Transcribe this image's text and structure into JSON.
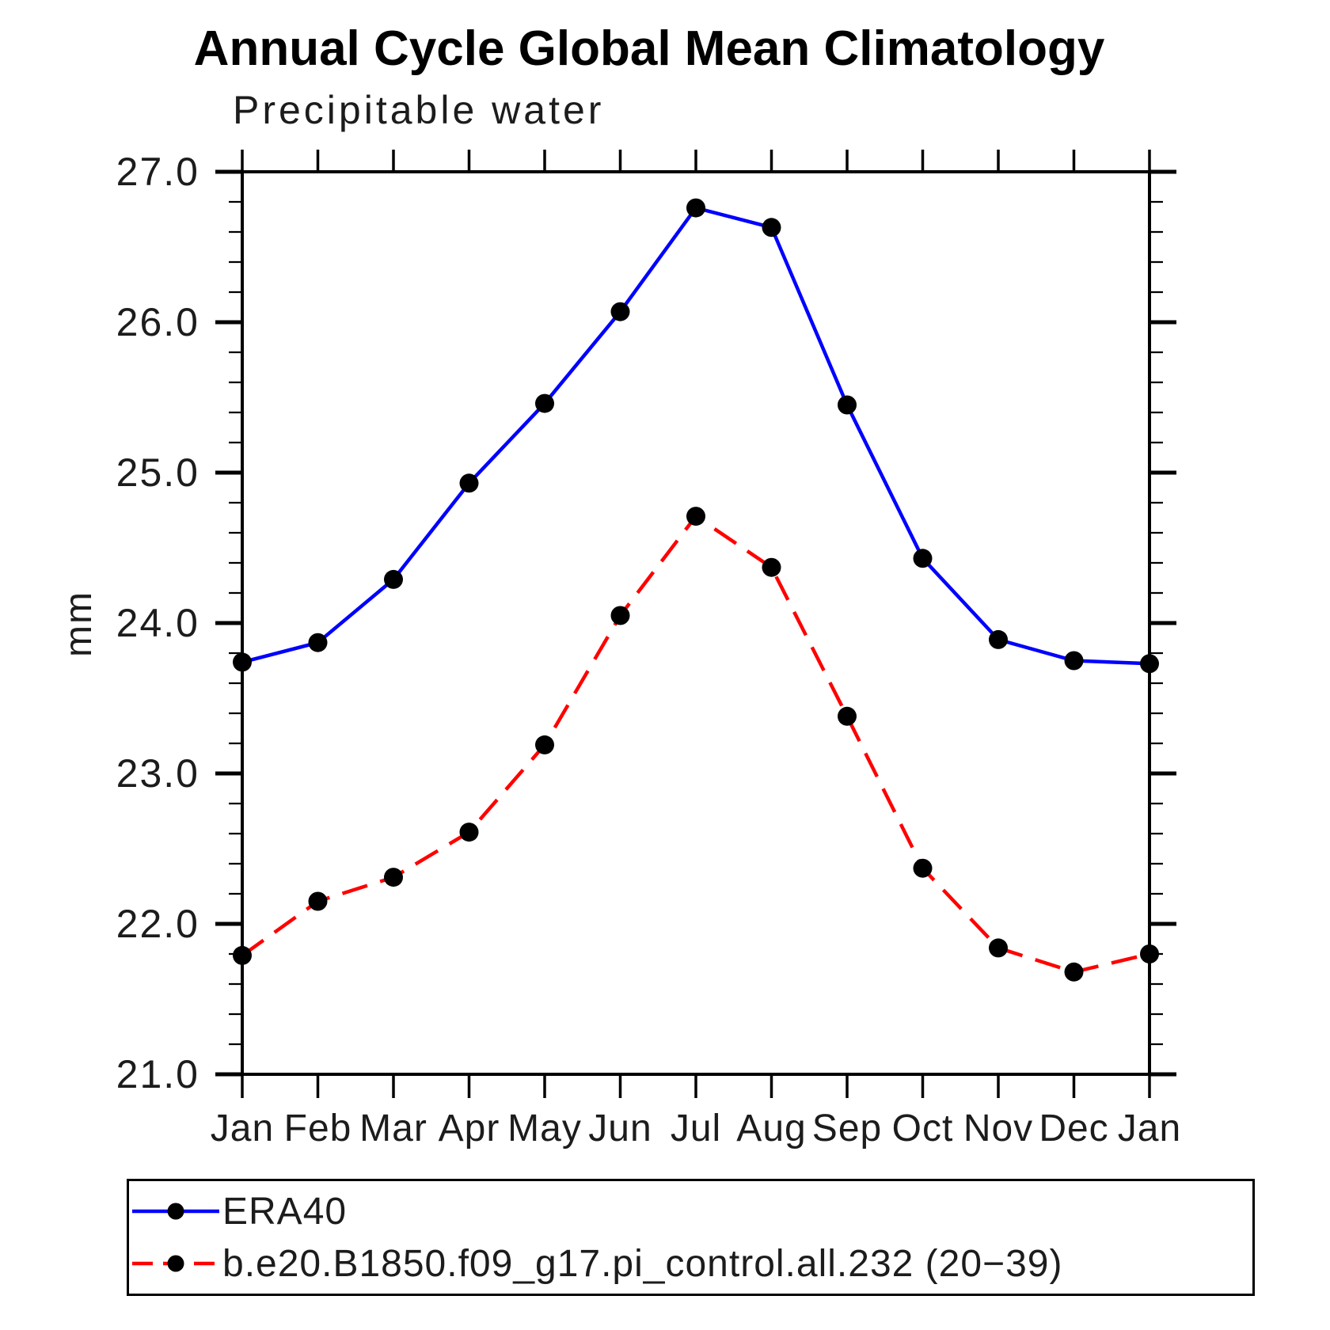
{
  "chart_data": {
    "type": "line",
    "title": "Annual Cycle Global Mean Climatology",
    "subtitle": "Precipitable water",
    "ylabel": "mm",
    "xlabel": "",
    "x_tick_labels": [
      "Jan",
      "Feb",
      "Mar",
      "Apr",
      "May",
      "Jun",
      "Jul",
      "Aug",
      "Sep",
      "Oct",
      "Nov",
      "Dec",
      "Jan"
    ],
    "y_ticks": [
      21.0,
      22.0,
      23.0,
      24.0,
      25.0,
      26.0,
      27.0
    ],
    "y_tick_labels": [
      "21.0",
      "22.0",
      "23.0",
      "24.0",
      "25.0",
      "26.0",
      "27.0"
    ],
    "ylim": [
      21.0,
      27.0
    ],
    "y_minor_step": 0.2,
    "grid": false,
    "legend_position": "bottom",
    "axis_color": "#000000",
    "marker_shape": "filled-circle",
    "series": [
      {
        "name": "ERA40",
        "color": "#0000ff",
        "style": "solid",
        "marker_color": "#000000",
        "values": [
          23.74,
          23.87,
          24.29,
          24.93,
          25.46,
          26.07,
          26.76,
          26.63,
          25.45,
          24.43,
          23.89,
          23.75,
          23.73
        ]
      },
      {
        "name": "b.e20.B1850.f09_g17.pi_control.all.232 (20−39)",
        "color": "#ff0000",
        "style": "dashed",
        "marker_color": "#000000",
        "values": [
          21.79,
          22.15,
          22.31,
          22.61,
          23.19,
          24.05,
          24.71,
          24.37,
          23.38,
          22.37,
          21.84,
          21.68,
          21.8
        ]
      }
    ]
  }
}
